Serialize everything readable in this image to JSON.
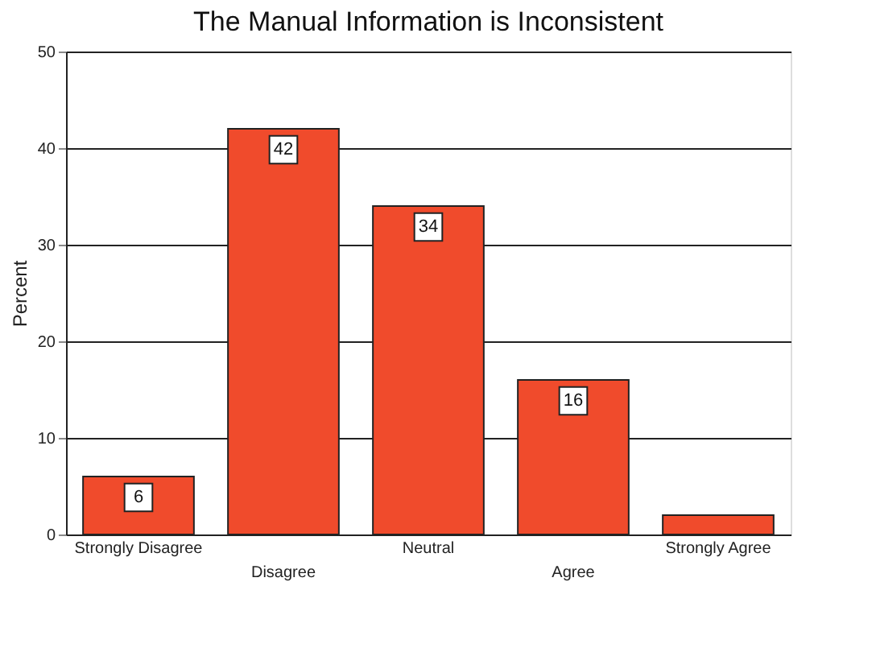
{
  "chart_data": {
    "type": "bar",
    "title": "The Manual Information is Inconsistent",
    "ylabel": "Percent",
    "categories": [
      "Strongly Disagree",
      "Disagree",
      "Neutral",
      "Agree",
      "Strongly Agree"
    ],
    "values": [
      6,
      42,
      34,
      16,
      2
    ],
    "value_labels": [
      "6",
      "42",
      "34",
      "16",
      null
    ],
    "color": "#f04b2c",
    "ylim": [
      0,
      50
    ],
    "yticks": [
      0,
      10,
      20,
      30,
      40,
      50
    ],
    "grid": "y"
  }
}
